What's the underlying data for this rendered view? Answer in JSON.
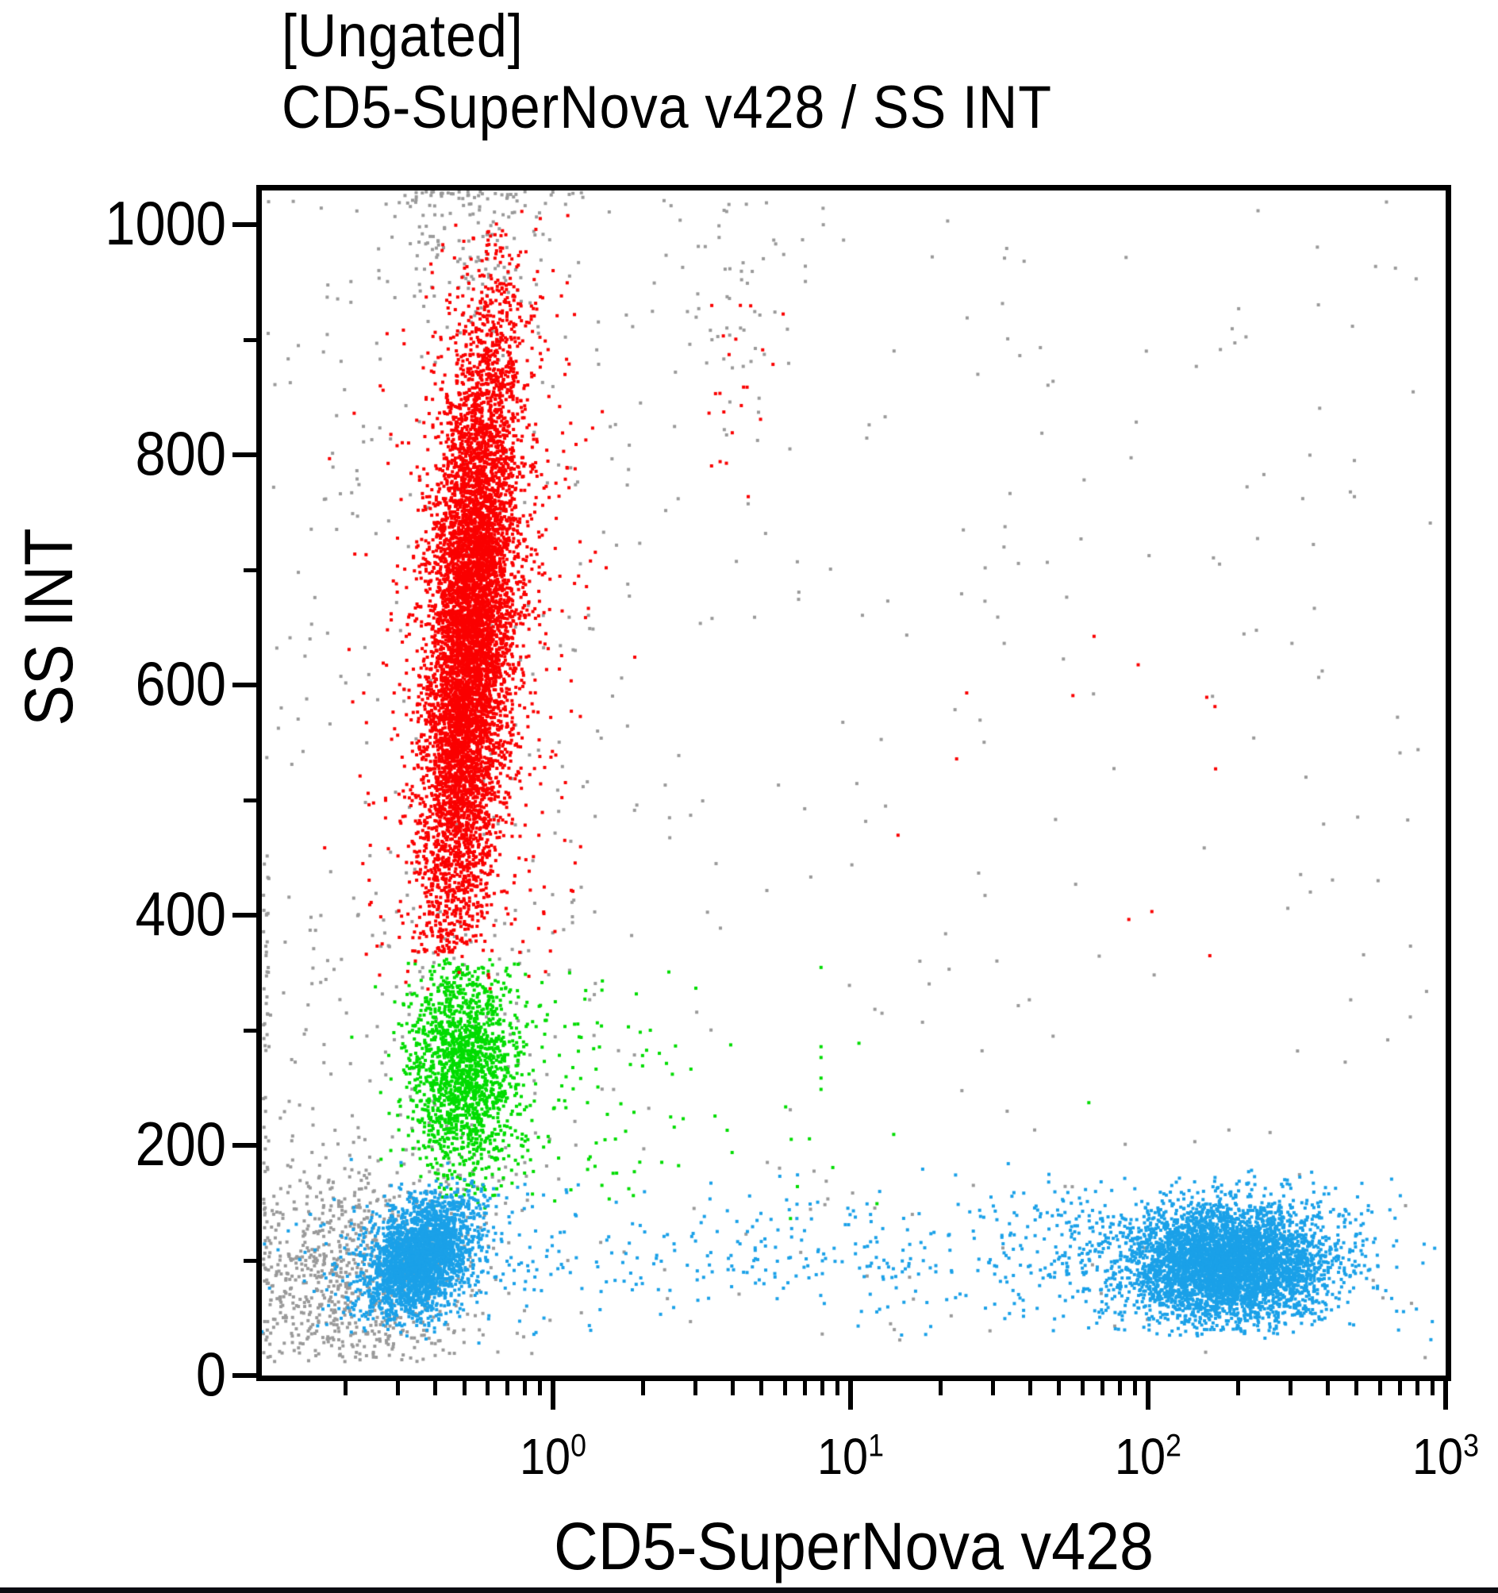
{
  "chart_data": {
    "type": "scatter",
    "title_line1": "[Ungated]",
    "title_line2": "CD5-SuperNova v428 / SS INT",
    "xlabel": "CD5-SuperNova v428",
    "ylabel": "SS INT",
    "x_scale": "log10",
    "x_domain_log10": [
      -0.98,
      3
    ],
    "x_major_tick_exponents": [
      0,
      1,
      2,
      3
    ],
    "y_domain": [
      0,
      1030
    ],
    "y_major_ticks": [
      0,
      200,
      400,
      600,
      800,
      1000
    ],
    "y_minor_ticks": [
      100,
      300,
      500,
      700,
      900
    ],
    "grid": false,
    "legend": "none",
    "seed": 1337,
    "dot_size": 4,
    "colors": {
      "red": "#fa0000",
      "green": "#00dc00",
      "blue": "#1ba1e8",
      "gray": "#9a9a9a"
    },
    "populations": [
      {
        "name": "gray-above-granulocytes",
        "color": "gray",
        "dist": "gauss",
        "n": 140,
        "x_log_mean": -0.26,
        "x_log_sd": 0.14,
        "y_mean": 1000,
        "y_sd": 50,
        "y_clip": [
          880,
          1029
        ]
      },
      {
        "name": "gray-satellite-top-middle",
        "color": "gray",
        "dist": "gauss",
        "n": 50,
        "x_log_mean": 0.62,
        "x_log_sd": 0.13,
        "y_mean": 945,
        "y_sd": 55,
        "y_clip": [
          760,
          1029
        ]
      },
      {
        "name": "gray-debris-low",
        "color": "gray",
        "dist": "gauss",
        "n": 750,
        "x_log_mean": -0.7,
        "x_log_sd": 0.21,
        "y_mean": 78,
        "y_sd": 52,
        "y_clip": [
          12,
          260
        ],
        "x_log_clip": [
          -0.975,
          0.3
        ]
      },
      {
        "name": "gray-scatter-left",
        "color": "gray",
        "dist": "uniform",
        "n": 330,
        "x_log_range": [
          -0.97,
          0.3
        ],
        "y_range": [
          15,
          1025
        ]
      },
      {
        "name": "gray-scatter-wide",
        "color": "gray",
        "dist": "uniform",
        "n": 230,
        "x_log_range": [
          0.3,
          2.97
        ],
        "y_range": [
          15,
          1025
        ]
      },
      {
        "name": "gray-midband-left",
        "color": "gray",
        "dist": "gauss",
        "n": 120,
        "x_log_mean": -0.35,
        "x_log_sd": 0.28,
        "y_range": [
          130,
          420
        ]
      },
      {
        "name": "gray-left-edge-pileup",
        "color": "gray",
        "dist": "uniform",
        "n": 60,
        "x_log_range": [
          -0.975,
          -0.955
        ],
        "y_range": [
          30,
          460
        ]
      },
      {
        "name": "gray-top-edge-pileup",
        "color": "gray",
        "dist": "uniform",
        "n": 22,
        "x_log_range": [
          -0.5,
          0.1
        ],
        "y_range": [
          1024,
          1029
        ]
      },
      {
        "name": "monocytes-core",
        "color": "green",
        "dist": "gauss",
        "n": 1500,
        "x_log_mean": -0.3,
        "x_log_sd": 0.095,
        "y_mean": 268,
        "y_sd": 46,
        "y_clip": [
          152,
          362
        ]
      },
      {
        "name": "monocytes-right-tail",
        "color": "green",
        "dist": "exp_tail",
        "n": 300,
        "x_log_start": -0.42,
        "x_log_scale": 0.3,
        "x_log_clip": [
          -0.42,
          0.9
        ],
        "y_mean": 252,
        "y_sd": 58,
        "y_clip": [
          140,
          362
        ]
      },
      {
        "name": "green-outliers",
        "color": "green",
        "dist": "uniform",
        "n": 7,
        "x_log_range": [
          0.7,
          2.0
        ],
        "y_range": [
          120,
          300
        ]
      },
      {
        "name": "granulocytes-core",
        "color": "red",
        "dist": "gauss",
        "n": 7000,
        "x_log_mean": -0.28,
        "x_log_sd": 0.068,
        "y_mean": 645,
        "y_sd": 135,
        "x_tilt_per_y": 0.00024,
        "y_clip": [
          368,
          1008
        ]
      },
      {
        "name": "granulocytes-fringe",
        "color": "red",
        "dist": "gauss",
        "n": 900,
        "x_log_mean": -0.26,
        "x_log_sd": 0.16,
        "y_mean": 640,
        "y_sd": 175,
        "x_tilt_per_y": 0.00024,
        "y_clip": [
          335,
          1012
        ]
      },
      {
        "name": "granulocytes-top-satellite",
        "color": "red",
        "dist": "gauss",
        "n": 22,
        "x_log_mean": 0.62,
        "x_log_sd": 0.1,
        "y_mean": 880,
        "y_sd": 48,
        "y_clip": [
          740,
          1005
        ]
      },
      {
        "name": "red-outliers-right",
        "color": "red",
        "dist": "uniform",
        "n": 12,
        "x_log_range": [
          1.05,
          2.3
        ],
        "y_range": [
          330,
          700
        ]
      },
      {
        "name": "lymphocytes-left-halo",
        "color": "blue",
        "dist": "gauss",
        "n": 180,
        "x_log_mean": -0.5,
        "x_log_sd": 0.22,
        "y_mean": 105,
        "y_sd": 38,
        "y_clip": [
          25,
          190
        ]
      },
      {
        "name": "lymphocytes-cd5neg",
        "color": "blue",
        "dist": "gauss",
        "n": 2600,
        "x_log_mean": -0.445,
        "x_log_sd": 0.085,
        "y_mean": 103,
        "y_sd": 26,
        "x_tilt_per_y": 0.0013,
        "y_clip": [
          36,
          172
        ]
      },
      {
        "name": "lymphocytes-cd5pos-fringe",
        "color": "blue",
        "dist": "gauss",
        "n": 600,
        "x_log_mean": 2.22,
        "x_log_sd": 0.33,
        "y_mean": 102,
        "y_sd": 31,
        "y_clip": [
          30,
          185
        ],
        "x_log_clip": [
          1.2,
          2.98
        ]
      },
      {
        "name": "lymphocytes-cd5pos",
        "color": "blue",
        "dist": "gauss",
        "n": 4200,
        "x_log_mean": 2.27,
        "x_log_sd": 0.17,
        "y_mean": 96,
        "y_sd": 25,
        "y_clip": [
          34,
          175
        ],
        "x_log_clip": [
          1.55,
          2.98
        ]
      },
      {
        "name": "lymphocytes-bridge",
        "color": "blue",
        "dist": "hband",
        "n": 340,
        "x_log_range": [
          -0.12,
          1.95
        ],
        "y_mean": 104,
        "y_sd": 30,
        "y_clip": [
          35,
          185
        ]
      }
    ]
  }
}
